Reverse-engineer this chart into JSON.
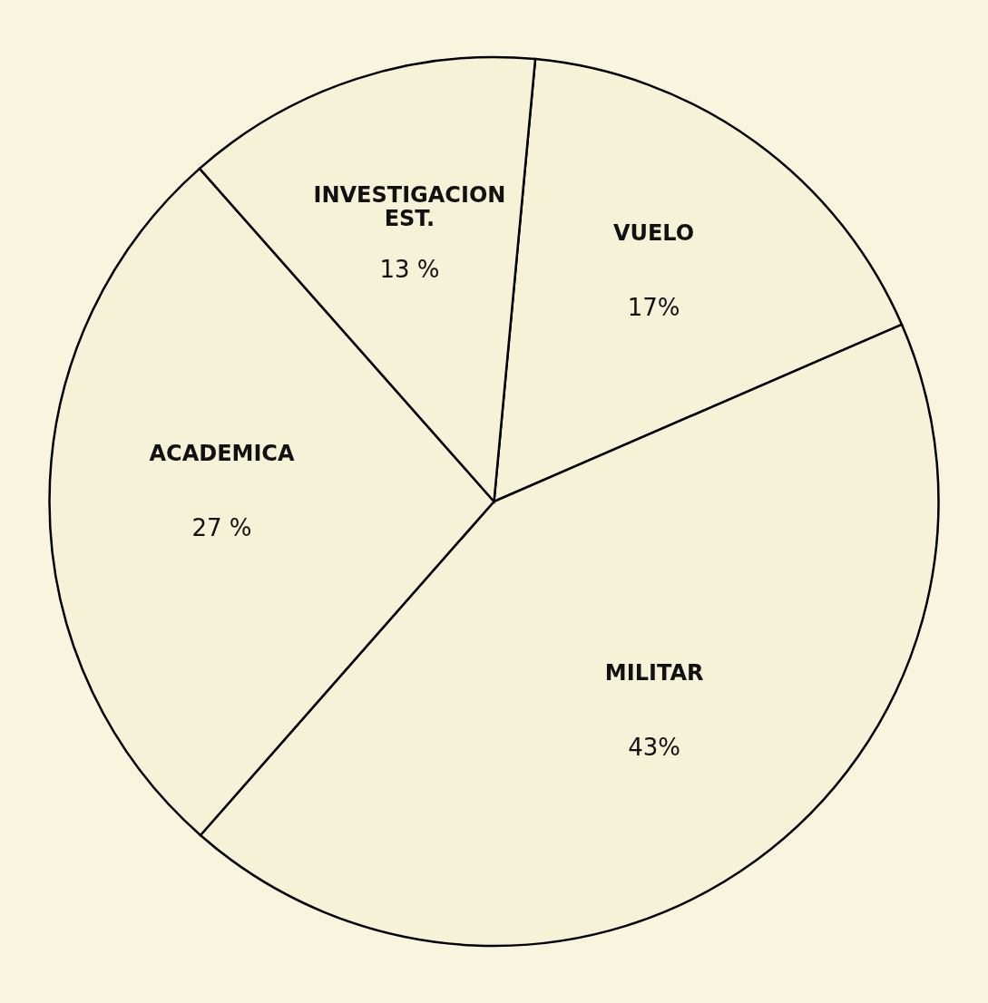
{
  "chart_data": {
    "type": "pie",
    "categories": [
      "VUELO",
      "MILITAR",
      "ACADEMICA",
      "INVESTIGACION EST."
    ],
    "values": [
      17,
      43,
      27,
      13
    ],
    "colors": [
      "#f6f2d8",
      "#f6f2d8",
      "#f6f2d8",
      "#f6f2d8"
    ],
    "value_labels": [
      "17%",
      "43%",
      "27 %",
      "13 %"
    ]
  }
}
